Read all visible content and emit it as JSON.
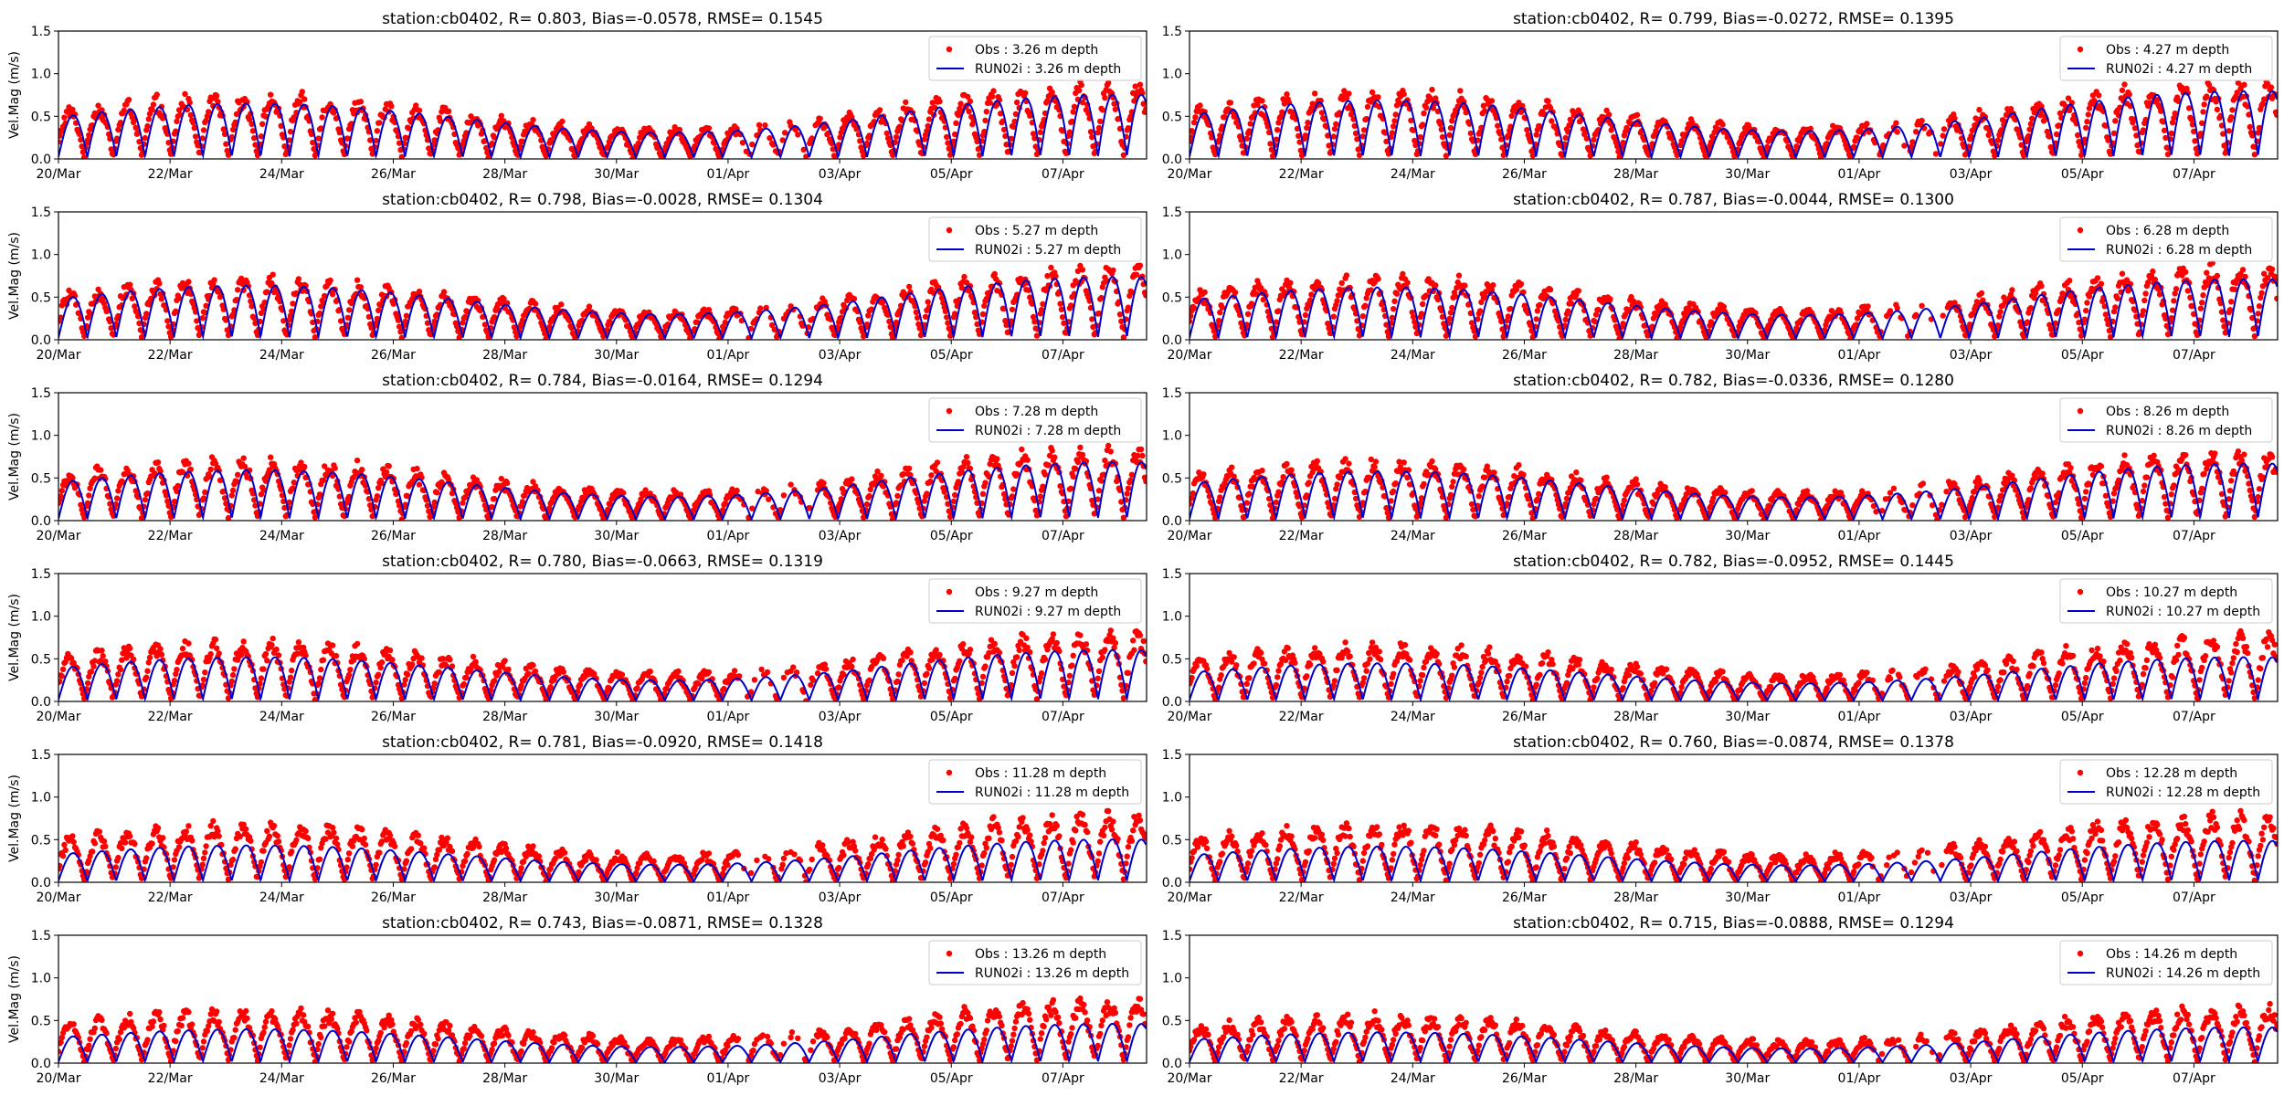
{
  "figure": {
    "ylabel": "Vel.Mag (m/s)",
    "x_tick_labels": [
      "20/Mar",
      "22/Mar",
      "24/Mar",
      "26/Mar",
      "28/Mar",
      "30/Mar",
      "01/Apr",
      "03/Apr",
      "05/Apr",
      "07/Apr"
    ],
    "y_tick_labels": [
      "0.0",
      "0.5",
      "1.0",
      "1.5"
    ],
    "colors": {
      "obs": "#ff0000",
      "model": "#0000cc",
      "axes": "#000000"
    }
  },
  "chart_data": [
    {
      "type": "line",
      "title": "station:cb0402, R= 0.803, Bias=-0.0578, RMSE= 0.1545",
      "ylabel": "Vel.Mag (m/s)",
      "xlabel": "",
      "x_range": [
        "2019-03-20",
        "2019-04-08 12:00"
      ],
      "ylim": [
        0,
        1.5
      ],
      "legend_position": "top-right",
      "series": [
        {
          "name": "Obs : 3.26 m depth",
          "kind": "scatter",
          "approx_peak": 0.96
        },
        {
          "name": "RUN02i : 3.26 m depth",
          "kind": "line",
          "approx_peak": 0.9
        }
      ]
    },
    {
      "type": "line",
      "title": "station:cb0402, R= 0.799, Bias=-0.0272, RMSE= 0.1395",
      "ylabel": "",
      "xlabel": "",
      "x_range": [
        "2019-03-20",
        "2019-04-08 12:00"
      ],
      "ylim": [
        0,
        1.5
      ],
      "legend_position": "top-right",
      "series": [
        {
          "name": "Obs : 4.27 m depth",
          "kind": "scatter",
          "approx_peak": 1.0
        },
        {
          "name": "RUN02i : 4.27 m depth",
          "kind": "line",
          "approx_peak": 0.95
        }
      ]
    },
    {
      "type": "line",
      "title": "station:cb0402, R= 0.798, Bias=-0.0028, RMSE= 0.1304",
      "ylabel": "Vel.Mag (m/s)",
      "xlabel": "",
      "x_range": [
        "2019-03-20",
        "2019-04-08 12:00"
      ],
      "ylim": [
        0,
        1.5
      ],
      "legend_position": "top-right",
      "series": [
        {
          "name": "Obs : 5.27 m depth",
          "kind": "scatter",
          "approx_peak": 0.93
        },
        {
          "name": "RUN02i : 5.27 m depth",
          "kind": "line",
          "approx_peak": 0.88
        }
      ]
    },
    {
      "type": "line",
      "title": "station:cb0402, R= 0.787, Bias=-0.0044, RMSE= 0.1300",
      "ylabel": "",
      "xlabel": "",
      "x_range": [
        "2019-03-20",
        "2019-04-08 12:00"
      ],
      "ylim": [
        0,
        1.5
      ],
      "legend_position": "top-right",
      "series": [
        {
          "name": "Obs : 6.28 m depth",
          "kind": "scatter",
          "approx_peak": 0.95
        },
        {
          "name": "RUN02i : 6.28 m depth",
          "kind": "line",
          "approx_peak": 0.85
        }
      ]
    },
    {
      "type": "line",
      "title": "station:cb0402, R= 0.784, Bias=-0.0164, RMSE= 0.1294",
      "ylabel": "Vel.Mag (m/s)",
      "xlabel": "",
      "x_range": [
        "2019-03-20",
        "2019-04-08 12:00"
      ],
      "ylim": [
        0,
        1.5
      ],
      "legend_position": "top-right",
      "series": [
        {
          "name": "Obs : 7.28 m depth",
          "kind": "scatter",
          "approx_peak": 0.92
        },
        {
          "name": "RUN02i : 7.28 m depth",
          "kind": "line",
          "approx_peak": 0.82
        }
      ]
    },
    {
      "type": "line",
      "title": "station:cb0402, R= 0.782, Bias=-0.0336, RMSE= 0.1280",
      "ylabel": "",
      "xlabel": "",
      "x_range": [
        "2019-03-20",
        "2019-04-08 12:00"
      ],
      "ylim": [
        0,
        1.5
      ],
      "legend_position": "top-right",
      "series": [
        {
          "name": "Obs : 8.26 m depth",
          "kind": "scatter",
          "approx_peak": 0.9
        },
        {
          "name": "RUN02i : 8.26 m depth",
          "kind": "line",
          "approx_peak": 0.8
        }
      ]
    },
    {
      "type": "line",
      "title": "station:cb0402, R= 0.780, Bias=-0.0663, RMSE= 0.1319",
      "ylabel": "Vel.Mag (m/s)",
      "xlabel": "",
      "x_range": [
        "2019-03-20",
        "2019-04-08 12:00"
      ],
      "ylim": [
        0,
        1.5
      ],
      "legend_position": "top-right",
      "series": [
        {
          "name": "Obs : 9.27 m depth",
          "kind": "scatter",
          "approx_peak": 0.9
        },
        {
          "name": "RUN02i : 9.27 m depth",
          "kind": "line",
          "approx_peak": 0.72
        }
      ]
    },
    {
      "type": "line",
      "title": "station:cb0402, R= 0.782, Bias=-0.0952, RMSE= 0.1445",
      "ylabel": "",
      "xlabel": "",
      "x_range": [
        "2019-03-20",
        "2019-04-08 12:00"
      ],
      "ylim": [
        0,
        1.5
      ],
      "legend_position": "top-right",
      "series": [
        {
          "name": "Obs : 10.27 m depth",
          "kind": "scatter",
          "approx_peak": 0.85
        },
        {
          "name": "RUN02i : 10.27 m depth",
          "kind": "line",
          "approx_peak": 0.62
        }
      ]
    },
    {
      "type": "line",
      "title": "station:cb0402, R= 0.781, Bias=-0.0920, RMSE= 0.1418",
      "ylabel": "Vel.Mag (m/s)",
      "xlabel": "",
      "x_range": [
        "2019-03-20",
        "2019-04-08 12:00"
      ],
      "ylim": [
        0,
        1.5
      ],
      "legend_position": "top-right",
      "series": [
        {
          "name": "Obs : 11.28 m depth",
          "kind": "scatter",
          "approx_peak": 0.88
        },
        {
          "name": "RUN02i : 11.28 m depth",
          "kind": "line",
          "approx_peak": 0.6
        }
      ]
    },
    {
      "type": "line",
      "title": "station:cb0402, R= 0.760, Bias=-0.0874, RMSE= 0.1378",
      "ylabel": "",
      "xlabel": "",
      "x_range": [
        "2019-03-20",
        "2019-04-08 12:00"
      ],
      "ylim": [
        0,
        1.5
      ],
      "legend_position": "top-right",
      "series": [
        {
          "name": "Obs : 12.28 m depth",
          "kind": "scatter",
          "approx_peak": 0.88
        },
        {
          "name": "RUN02i : 12.28 m depth",
          "kind": "line",
          "approx_peak": 0.58
        }
      ]
    },
    {
      "type": "line",
      "title": "station:cb0402, R= 0.743, Bias=-0.0871, RMSE= 0.1328",
      "ylabel": "Vel.Mag (m/s)",
      "xlabel": "",
      "x_range": [
        "2019-03-20",
        "2019-04-08 12:00"
      ],
      "ylim": [
        0,
        1.5
      ],
      "legend_position": "top-right",
      "series": [
        {
          "name": "Obs : 13.26 m depth",
          "kind": "scatter",
          "approx_peak": 0.8
        },
        {
          "name": "RUN02i : 13.26 m depth",
          "kind": "line",
          "approx_peak": 0.55
        }
      ]
    },
    {
      "type": "line",
      "title": "station:cb0402, R= 0.715, Bias=-0.0888, RMSE= 0.1294",
      "ylabel": "",
      "xlabel": "",
      "x_range": [
        "2019-03-20",
        "2019-04-08 12:00"
      ],
      "ylim": [
        0,
        1.5
      ],
      "legend_position": "top-right",
      "series": [
        {
          "name": "Obs : 14.26 m depth",
          "kind": "scatter",
          "approx_peak": 0.72
        },
        {
          "name": "RUN02i : 14.26 m depth",
          "kind": "line",
          "approx_peak": 0.5
        }
      ]
    }
  ]
}
